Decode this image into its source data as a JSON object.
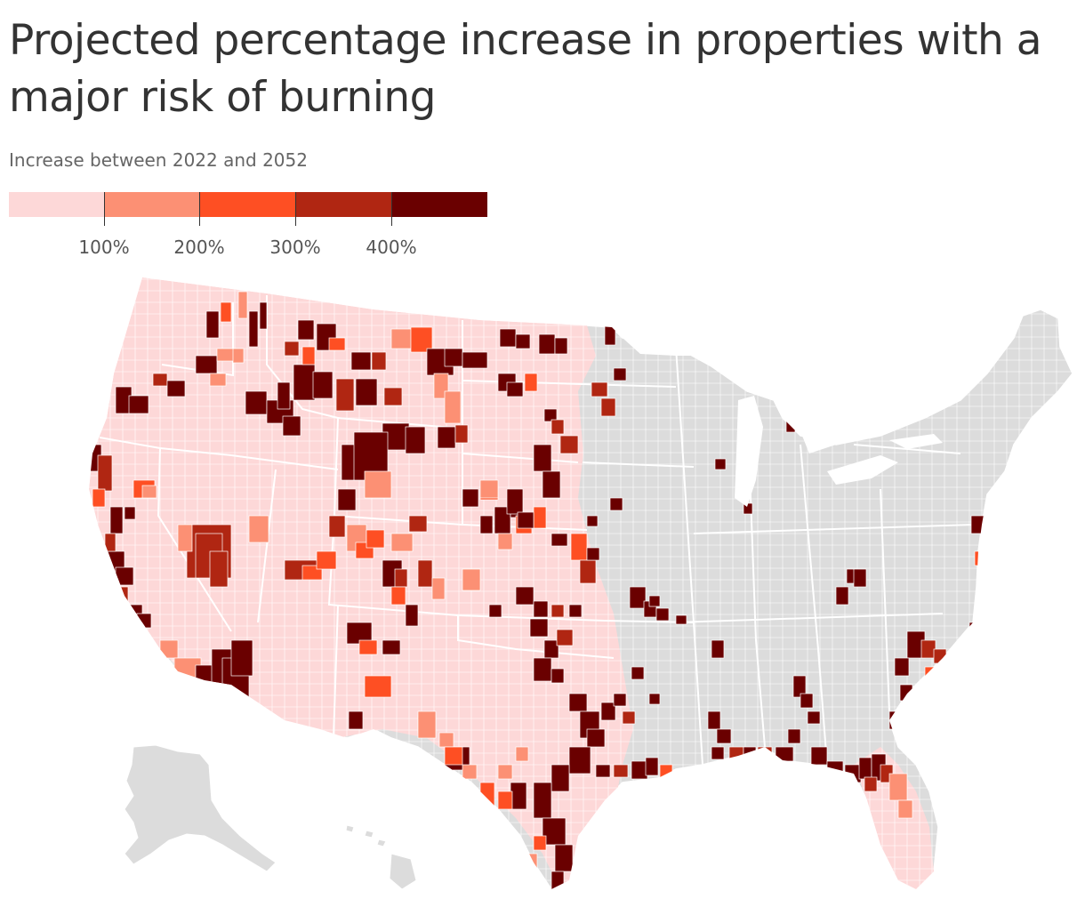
{
  "title": "Projected percentage increase in properties with a major risk of burning",
  "subtitle": "Increase between 2022 and 2052",
  "legend": {
    "bins": [
      {
        "color": "#fdd8d8"
      },
      {
        "color": "#fc9074"
      },
      {
        "color": "#fe4f23"
      },
      {
        "color": "#b02612"
      },
      {
        "color": "#6a0000"
      }
    ],
    "tick_labels": [
      "100%",
      "200%",
      "300%",
      "400%"
    ]
  },
  "colors": {
    "no_data": "#dcdcdc",
    "border": "#ffffff"
  }
}
